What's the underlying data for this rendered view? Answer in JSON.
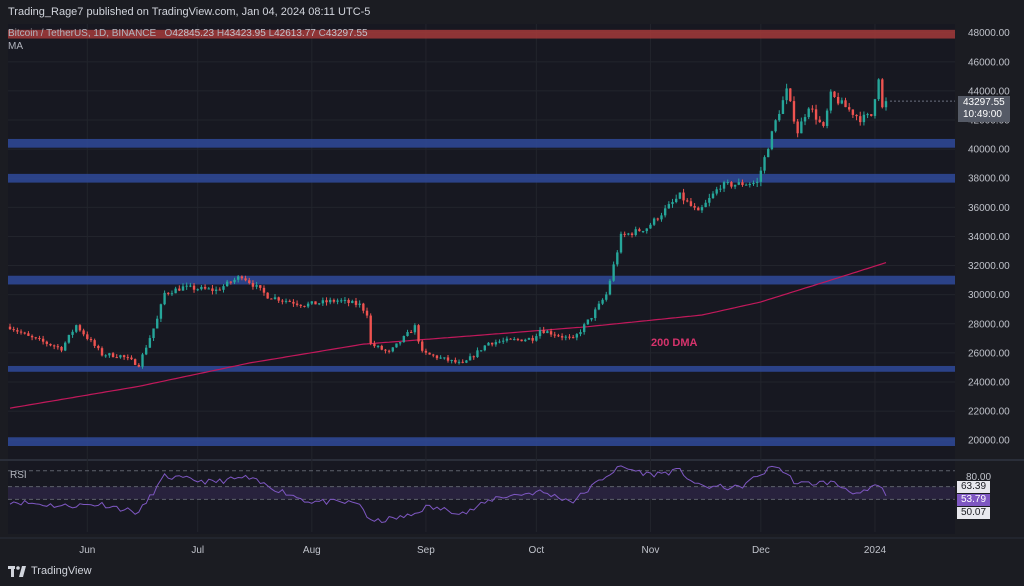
{
  "publisher": "Trading_Rage7 published on TradingView.com, Jan 04, 2024 08:11 UTC-5",
  "symbol": "Bitcoin / TetherUS, 1D, BINANCE",
  "ohlc": {
    "o_label": "O",
    "o": "42845.23",
    "h_label": "H",
    "h": "43423.95",
    "l_label": "L",
    "l": "42613.77",
    "c_label": "C",
    "c": "43297.55"
  },
  "ma_label": "MA",
  "rsi_label": "RSI",
  "ma_annotation": "200 DMA",
  "footer_brand": "TradingView",
  "price_box": {
    "price": "43297.55",
    "countdown": "10:49:00"
  },
  "rsi_boxes": {
    "upper": "63.39",
    "current": "53.79",
    "lower": "50.07",
    "top_level": "80.00"
  },
  "colors": {
    "up": "#26a69a",
    "down": "#ef5350",
    "ma": "#c2185b",
    "zone": "#2f4a9a",
    "zone_red": "#a33a3a",
    "rsi_line": "#7e57c2",
    "rsi_band": "#2a2440"
  },
  "chart_data": {
    "type": "candlestick",
    "title": "Bitcoin / TetherUS, 1D, BINANCE",
    "ylim": [
      18500,
      48600
    ],
    "y_ticks": [
      "48000.00",
      "46000.00",
      "44000.00",
      "42000.00",
      "40000.00",
      "38000.00",
      "36000.00",
      "34000.00",
      "32000.00",
      "30000.00",
      "28000.00",
      "26000.00",
      "24000.00",
      "22000.00",
      "20000.00"
    ],
    "x_ticks": [
      "Jun",
      "Jul",
      "Aug",
      "Sep",
      "Oct",
      "Nov",
      "Dec",
      "2024"
    ],
    "x_tick_dates": [
      "2023-06-01",
      "2023-07-01",
      "2023-08-01",
      "2023-09-01",
      "2023-10-01",
      "2023-11-01",
      "2023-12-01",
      "2024-01-01"
    ],
    "date_range": [
      "2023-05-11",
      "2024-01-04"
    ],
    "price_keypoints": [
      [
        "2023-05-11",
        27800
      ],
      [
        "2023-05-16",
        27100
      ],
      [
        "2023-05-25",
        26300
      ],
      [
        "2023-05-29",
        27900
      ],
      [
        "2023-06-05",
        25900
      ],
      [
        "2023-06-10",
        25800
      ],
      [
        "2023-06-15",
        25200
      ],
      [
        "2023-06-20",
        28300
      ],
      [
        "2023-06-22",
        30100
      ],
      [
        "2023-06-27",
        30500
      ],
      [
        "2023-07-06",
        30300
      ],
      [
        "2023-07-13",
        31300
      ],
      [
        "2023-07-20",
        29900
      ],
      [
        "2023-07-30",
        29300
      ],
      [
        "2023-08-08",
        29600
      ],
      [
        "2023-08-14",
        29300
      ],
      [
        "2023-08-16",
        28700
      ],
      [
        "2023-08-17",
        26600
      ],
      [
        "2023-08-22",
        26000
      ],
      [
        "2023-08-29",
        27800
      ],
      [
        "2023-08-31",
        26000
      ],
      [
        "2023-09-11",
        25200
      ],
      [
        "2023-09-18",
        26700
      ],
      [
        "2023-09-30",
        27000
      ],
      [
        "2023-10-02",
        27600
      ],
      [
        "2023-10-11",
        26900
      ],
      [
        "2023-10-16",
        28500
      ],
      [
        "2023-10-20",
        30000
      ],
      [
        "2023-10-23",
        33000
      ],
      [
        "2023-10-24",
        34000
      ],
      [
        "2023-10-31",
        34600
      ],
      [
        "2023-11-09",
        36800
      ],
      [
        "2023-11-14",
        35600
      ],
      [
        "2023-11-20",
        37500
      ],
      [
        "2023-11-30",
        37700
      ],
      [
        "2023-12-05",
        41900
      ],
      [
        "2023-12-08",
        44000
      ],
      [
        "2023-12-11",
        41200
      ],
      [
        "2023-12-14",
        43000
      ],
      [
        "2023-12-18",
        41400
      ],
      [
        "2023-12-20",
        43700
      ],
      [
        "2023-12-28",
        42100
      ],
      [
        "2023-12-31",
        42300
      ],
      [
        "2024-01-02",
        45000
      ],
      [
        "2024-01-03",
        42800
      ],
      [
        "2024-01-04",
        43297.55
      ]
    ],
    "ma200_keypoints": [
      [
        "2023-05-11",
        22200
      ],
      [
        "2023-06-15",
        23700
      ],
      [
        "2023-07-15",
        25300
      ],
      [
        "2023-08-15",
        26600
      ],
      [
        "2023-09-15",
        27200
      ],
      [
        "2023-10-15",
        27800
      ],
      [
        "2023-11-15",
        28600
      ],
      [
        "2023-12-01",
        29500
      ],
      [
        "2023-12-20",
        31000
      ],
      [
        "2024-01-04",
        32200
      ]
    ],
    "zones": [
      {
        "low": 47600,
        "high": 48200,
        "color": "red"
      },
      {
        "low": 40100,
        "high": 40700,
        "color": "blue"
      },
      {
        "low": 37700,
        "high": 38300,
        "color": "blue"
      },
      {
        "low": 30700,
        "high": 31300,
        "color": "blue"
      },
      {
        "low": 24700,
        "high": 25100,
        "color": "blue"
      },
      {
        "low": 19600,
        "high": 20200,
        "color": "blue"
      }
    ],
    "rsi": {
      "ylim": [
        20,
        85
      ],
      "levels": [
        80,
        63.39,
        50.07
      ],
      "current": 53.79,
      "keypoints": [
        [
          "2023-05-11",
          48
        ],
        [
          "2023-05-25",
          43
        ],
        [
          "2023-06-05",
          45
        ],
        [
          "2023-06-15",
          36
        ],
        [
          "2023-06-22",
          74
        ],
        [
          "2023-07-05",
          68
        ],
        [
          "2023-07-14",
          73
        ],
        [
          "2023-07-31",
          48
        ],
        [
          "2023-08-14",
          46
        ],
        [
          "2023-08-17",
          26
        ],
        [
          "2023-08-28",
          33
        ],
        [
          "2023-09-01",
          42
        ],
        [
          "2023-09-12",
          36
        ],
        [
          "2023-09-20",
          52
        ],
        [
          "2023-10-02",
          58
        ],
        [
          "2023-10-11",
          48
        ],
        [
          "2023-10-20",
          75
        ],
        [
          "2023-10-24",
          84
        ],
        [
          "2023-11-01",
          76
        ],
        [
          "2023-11-09",
          80
        ],
        [
          "2023-11-14",
          64
        ],
        [
          "2023-11-25",
          62
        ],
        [
          "2023-12-05",
          86
        ],
        [
          "2023-12-11",
          66
        ],
        [
          "2023-12-20",
          68
        ],
        [
          "2023-12-28",
          55
        ],
        [
          "2024-01-02",
          65
        ],
        [
          "2024-01-04",
          53.79
        ]
      ]
    }
  }
}
